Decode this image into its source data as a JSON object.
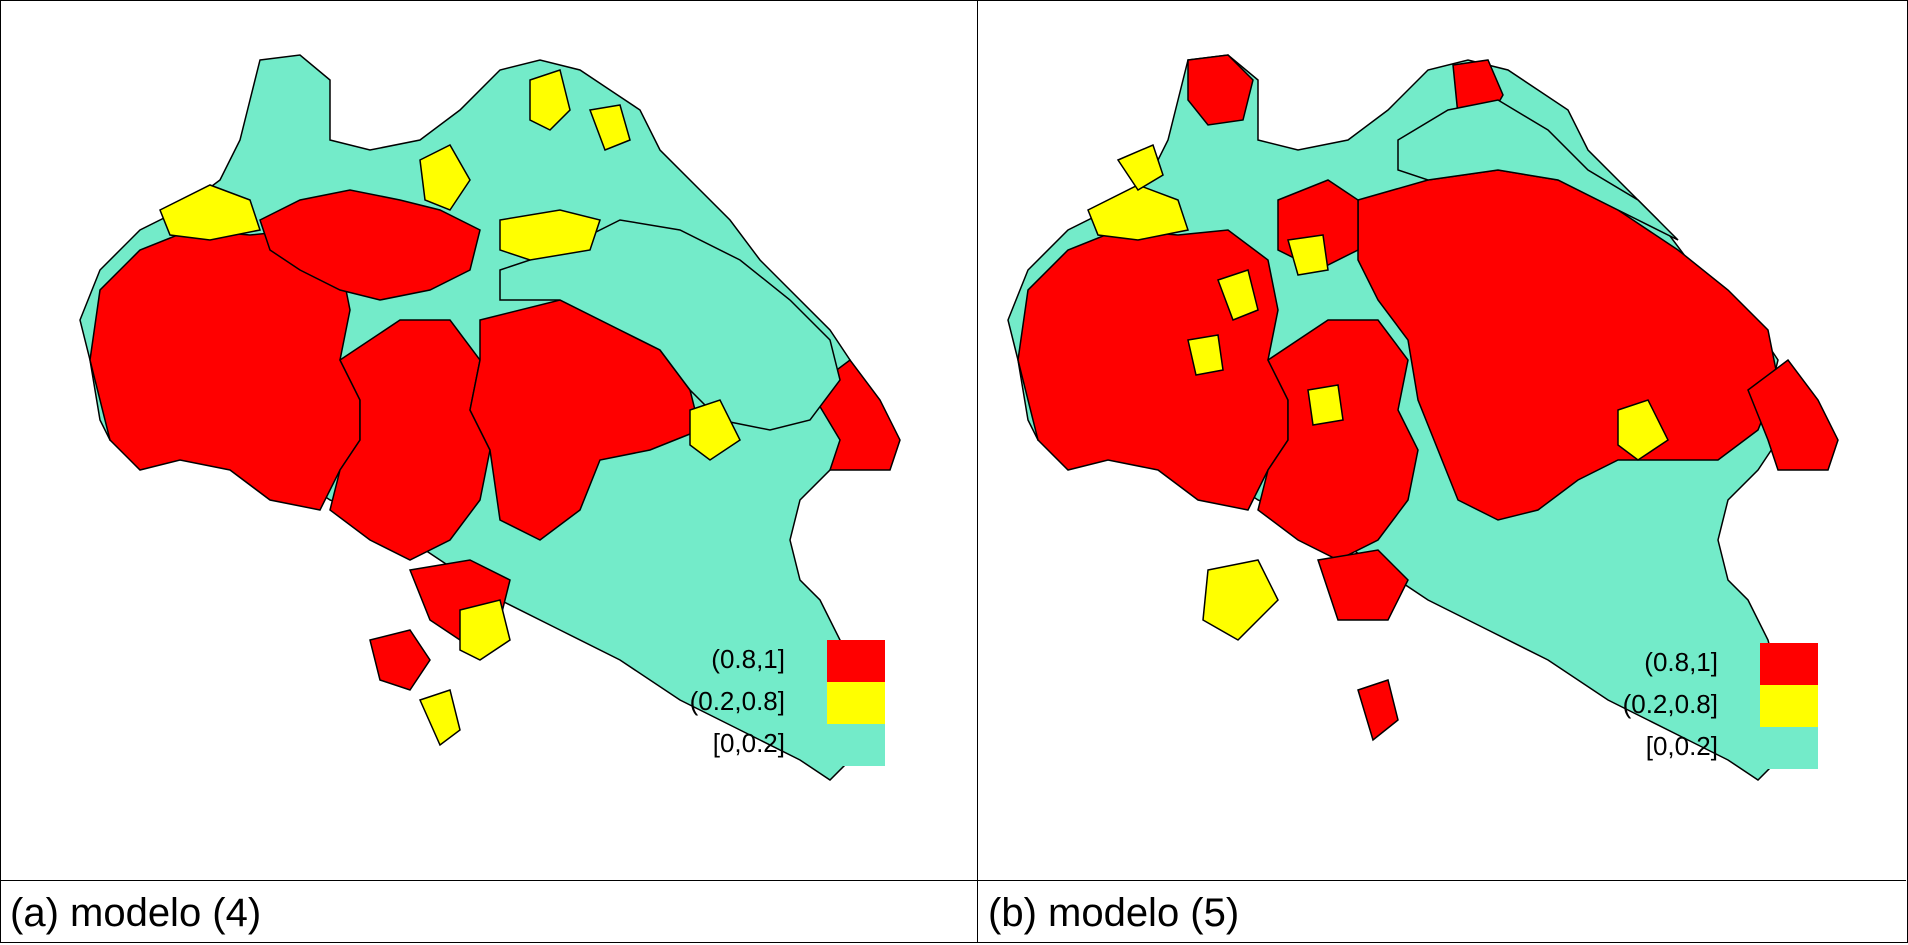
{
  "panels": [
    {
      "id": "a",
      "caption": "(a) modelo (4)"
    },
    {
      "id": "b",
      "caption": "(b) modelo (5)"
    }
  ],
  "legend": [
    {
      "label": "(0.8,1]",
      "color": "#ff0000"
    },
    {
      "label": "(0.2,0.8]",
      "color": "#ffff00"
    },
    {
      "label": "[0,0.2]",
      "color": "#73ebc9"
    }
  ],
  "colors": {
    "high": "#ff0000",
    "mid": "#ffff00",
    "low": "#73ebc9",
    "border": "#000000"
  }
}
